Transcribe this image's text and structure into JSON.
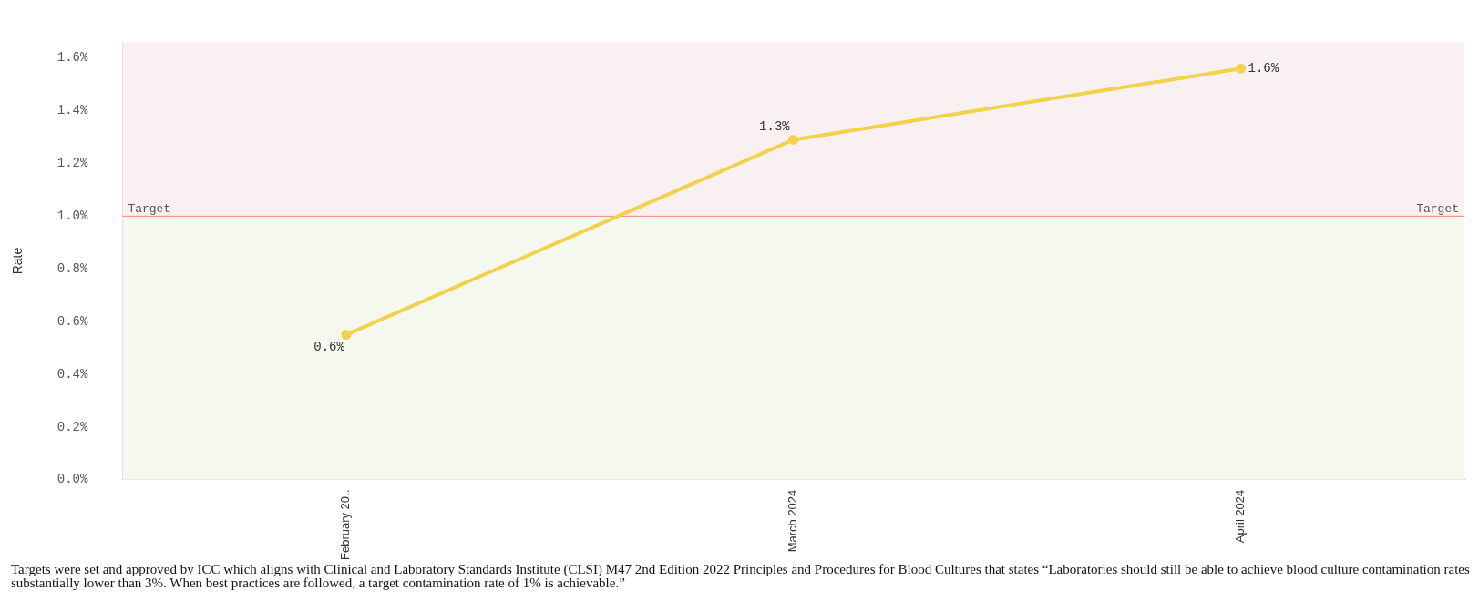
{
  "chart_data": {
    "type": "line",
    "ylabel": "Rate",
    "categories": [
      "February 20..",
      "March 2024",
      "April 2024"
    ],
    "series": [
      {
        "color": "#f2d24b",
        "values": [
          0.55,
          1.29,
          1.56
        ],
        "value_labels": [
          "0.6%",
          "1.3%",
          "1.6%"
        ]
      }
    ],
    "ylim": [
      0,
      1.66
    ],
    "yticks": [
      {
        "value": 0,
        "label": "0.0%"
      },
      {
        "value": 0.2,
        "label": "0.2%"
      },
      {
        "value": 0.4,
        "label": "0.4%"
      },
      {
        "value": 0.6,
        "label": "0.6%"
      },
      {
        "value": 0.8,
        "label": "0.8%"
      },
      {
        "value": 1,
        "label": "1.0%"
      },
      {
        "value": 1.2,
        "label": "1.2%"
      },
      {
        "value": 1.4,
        "label": "1.4%"
      },
      {
        "value": 1.6,
        "label": "1.6%"
      }
    ],
    "ref_lines": [
      {
        "axis": "y",
        "value": 1,
        "label": "Target",
        "color": "#f08080"
      }
    ],
    "bands": [
      {
        "axis": "y",
        "from": 0,
        "to": 1,
        "color": "#f4f8ee"
      },
      {
        "axis": "y",
        "from": 1,
        "to": 1.66,
        "color": "#f9f1f1"
      }
    ],
    "grid": false,
    "legend": false,
    "marker": "circle",
    "line_style": "solid",
    "annotations": [
      "Targets were set and approved by ICC which aligns with Clinical and Laboratory Standards Institute (CLSI) M47 2nd Edition 2022 Principles and Procedures for Blood Cultures that states “Laboratories should still be able to achieve blood culture contamination rates substantially lower than 3%. When best practices are followed, a target contamination rate of 1% is achievable.”"
    ]
  }
}
